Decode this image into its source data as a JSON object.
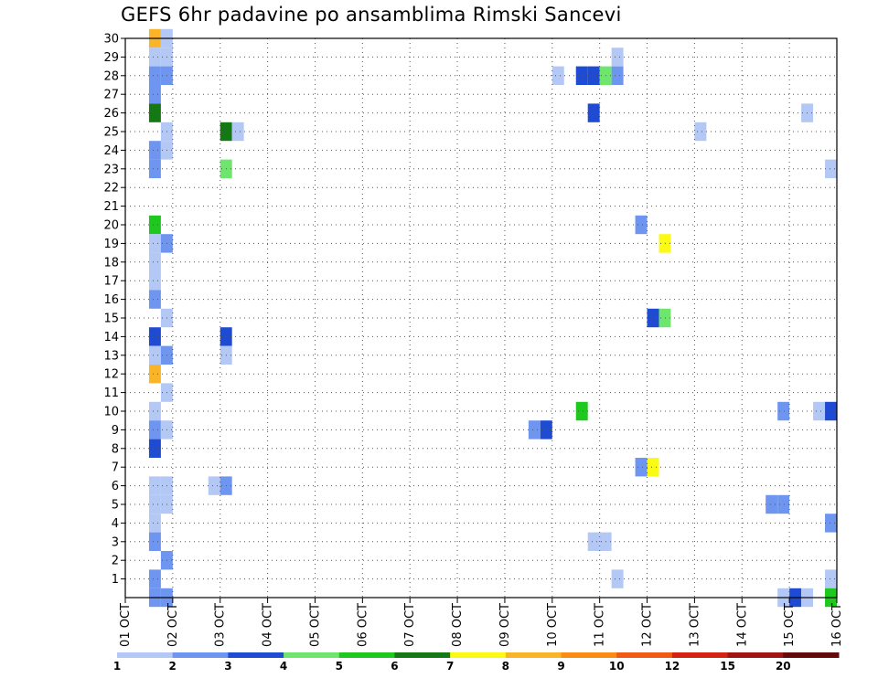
{
  "chart_data": {
    "type": "heatmap",
    "title": "GEFS 6hr padavine po ansamblima Rimski Sancevi",
    "xlabel": "",
    "ylabel": "",
    "x_ticks": [
      "01 OCT",
      "02 OCT",
      "03 OCT",
      "04 OCT",
      "05 OCT",
      "06 OCT",
      "07 OCT",
      "08 OCT",
      "09 OCT",
      "10 OCT",
      "11 OCT",
      "12 OCT",
      "13 OCT",
      "14 OCT",
      "15 OCT",
      "16 OCT"
    ],
    "xlim": [
      1,
      16
    ],
    "y_ticks": [
      1,
      2,
      3,
      4,
      5,
      6,
      7,
      8,
      9,
      10,
      11,
      12,
      13,
      14,
      15,
      16,
      17,
      18,
      19,
      20,
      21,
      22,
      23,
      24,
      25,
      26,
      27,
      28,
      29,
      30
    ],
    "ylim": [
      0,
      30
    ],
    "grid": true,
    "legend": {
      "placement": "bottom",
      "labels": [
        "1",
        "2",
        "3",
        "4",
        "5",
        "6",
        "7",
        "8",
        "9",
        "10",
        "12",
        "15",
        "20"
      ],
      "bins": [
        {
          "from": 1,
          "to": 2,
          "color": "#b4c8f5"
        },
        {
          "from": 2,
          "to": 3,
          "color": "#6e96f0"
        },
        {
          "from": 3,
          "to": 4,
          "color": "#1e4bd2"
        },
        {
          "from": 4,
          "to": 5,
          "color": "#6ee66e"
        },
        {
          "from": 5,
          "to": 6,
          "color": "#1ec81e"
        },
        {
          "from": 6,
          "to": 7,
          "color": "#147814"
        },
        {
          "from": 7,
          "to": 8,
          "color": "#fafa14"
        },
        {
          "from": 8,
          "to": 9,
          "color": "#fab428"
        },
        {
          "from": 9,
          "to": 10,
          "color": "#fa8c14"
        },
        {
          "from": 10,
          "to": 12,
          "color": "#f05a14"
        },
        {
          "from": 12,
          "to": 15,
          "color": "#d22314"
        },
        {
          "from": 15,
          "to": 20,
          "color": "#a01414"
        },
        {
          "from": 20,
          "to": 30,
          "color": "#640a0a"
        }
      ]
    },
    "cells": [
      {
        "day": 1.5,
        "member": 30,
        "bin": 8
      },
      {
        "day": 1.75,
        "member": 30,
        "bin": 1
      },
      {
        "day": 1.5,
        "member": 29,
        "bin": 1
      },
      {
        "day": 1.75,
        "member": 29,
        "bin": 1
      },
      {
        "day": 1.5,
        "member": 28,
        "bin": 2
      },
      {
        "day": 1.75,
        "member": 28,
        "bin": 2
      },
      {
        "day": 1.5,
        "member": 27,
        "bin": 2
      },
      {
        "day": 1.5,
        "member": 26,
        "bin": 6
      },
      {
        "day": 1.75,
        "member": 25,
        "bin": 1
      },
      {
        "day": 1.5,
        "member": 24,
        "bin": 2
      },
      {
        "day": 1.75,
        "member": 24,
        "bin": 1
      },
      {
        "day": 1.5,
        "member": 23,
        "bin": 2
      },
      {
        "day": 1.5,
        "member": 20,
        "bin": 5
      },
      {
        "day": 1.5,
        "member": 19,
        "bin": 1
      },
      {
        "day": 1.75,
        "member": 19,
        "bin": 2
      },
      {
        "day": 1.5,
        "member": 18,
        "bin": 1
      },
      {
        "day": 1.5,
        "member": 17,
        "bin": 1
      },
      {
        "day": 1.5,
        "member": 16,
        "bin": 2
      },
      {
        "day": 1.75,
        "member": 15,
        "bin": 1
      },
      {
        "day": 1.5,
        "member": 14,
        "bin": 3
      },
      {
        "day": 1.5,
        "member": 13,
        "bin": 1
      },
      {
        "day": 1.75,
        "member": 13,
        "bin": 2
      },
      {
        "day": 1.5,
        "member": 12,
        "bin": 8
      },
      {
        "day": 1.75,
        "member": 11,
        "bin": 1
      },
      {
        "day": 1.5,
        "member": 10,
        "bin": 1
      },
      {
        "day": 1.5,
        "member": 9,
        "bin": 2
      },
      {
        "day": 1.75,
        "member": 9,
        "bin": 1
      },
      {
        "day": 1.5,
        "member": 8,
        "bin": 3
      },
      {
        "day": 1.5,
        "member": 6,
        "bin": 1
      },
      {
        "day": 1.75,
        "member": 6,
        "bin": 1
      },
      {
        "day": 1.5,
        "member": 5,
        "bin": 1
      },
      {
        "day": 1.75,
        "member": 5,
        "bin": 1
      },
      {
        "day": 1.5,
        "member": 4,
        "bin": 1
      },
      {
        "day": 1.5,
        "member": 3,
        "bin": 2
      },
      {
        "day": 1.75,
        "member": 2,
        "bin": 2
      },
      {
        "day": 1.5,
        "member": 1,
        "bin": 2
      },
      {
        "day": 1.5,
        "member": 0,
        "bin": 2
      },
      {
        "day": 1.75,
        "member": 0,
        "bin": 2
      },
      {
        "day": 3.0,
        "member": 25,
        "bin": 6
      },
      {
        "day": 3.25,
        "member": 25,
        "bin": 1
      },
      {
        "day": 3.0,
        "member": 23,
        "bin": 4
      },
      {
        "day": 3.0,
        "member": 14,
        "bin": 3
      },
      {
        "day": 3.0,
        "member": 13,
        "bin": 1
      },
      {
        "day": 2.75,
        "member": 6,
        "bin": 1
      },
      {
        "day": 3.0,
        "member": 6,
        "bin": 2
      },
      {
        "day": 9.5,
        "member": 9,
        "bin": 2
      },
      {
        "day": 9.75,
        "member": 9,
        "bin": 3
      },
      {
        "day": 10.0,
        "member": 28,
        "bin": 1
      },
      {
        "day": 10.5,
        "member": 28,
        "bin": 3
      },
      {
        "day": 10.75,
        "member": 28,
        "bin": 3
      },
      {
        "day": 11.0,
        "member": 28,
        "bin": 4
      },
      {
        "day": 11.25,
        "member": 28,
        "bin": 2
      },
      {
        "day": 11.25,
        "member": 29,
        "bin": 1
      },
      {
        "day": 10.75,
        "member": 26,
        "bin": 3
      },
      {
        "day": 10.5,
        "member": 10,
        "bin": 5
      },
      {
        "day": 10.75,
        "member": 3,
        "bin": 1
      },
      {
        "day": 11.0,
        "member": 3,
        "bin": 1
      },
      {
        "day": 11.25,
        "member": 1,
        "bin": 1
      },
      {
        "day": 11.75,
        "member": 20,
        "bin": 2
      },
      {
        "day": 12.25,
        "member": 19,
        "bin": 7
      },
      {
        "day": 12.0,
        "member": 15,
        "bin": 3
      },
      {
        "day": 12.25,
        "member": 15,
        "bin": 4
      },
      {
        "day": 11.75,
        "member": 7,
        "bin": 2
      },
      {
        "day": 12.0,
        "member": 7,
        "bin": 7
      },
      {
        "day": 13.0,
        "member": 25,
        "bin": 1
      },
      {
        "day": 15.25,
        "member": 26,
        "bin": 1
      },
      {
        "day": 14.75,
        "member": 10,
        "bin": 2
      },
      {
        "day": 15.5,
        "member": 10,
        "bin": 1
      },
      {
        "day": 15.75,
        "member": 10,
        "bin": 3
      },
      {
        "day": 14.5,
        "member": 5,
        "bin": 2
      },
      {
        "day": 14.75,
        "member": 5,
        "bin": 2
      },
      {
        "day": 15.75,
        "member": 23,
        "bin": 1
      },
      {
        "day": 15.75,
        "member": 4,
        "bin": 2
      },
      {
        "day": 15.75,
        "member": 1,
        "bin": 1
      },
      {
        "day": 14.75,
        "member": 0,
        "bin": 1
      },
      {
        "day": 15.0,
        "member": 0,
        "bin": 3
      },
      {
        "day": 15.25,
        "member": 0,
        "bin": 1
      },
      {
        "day": 15.75,
        "member": 0,
        "bin": 5
      }
    ]
  }
}
